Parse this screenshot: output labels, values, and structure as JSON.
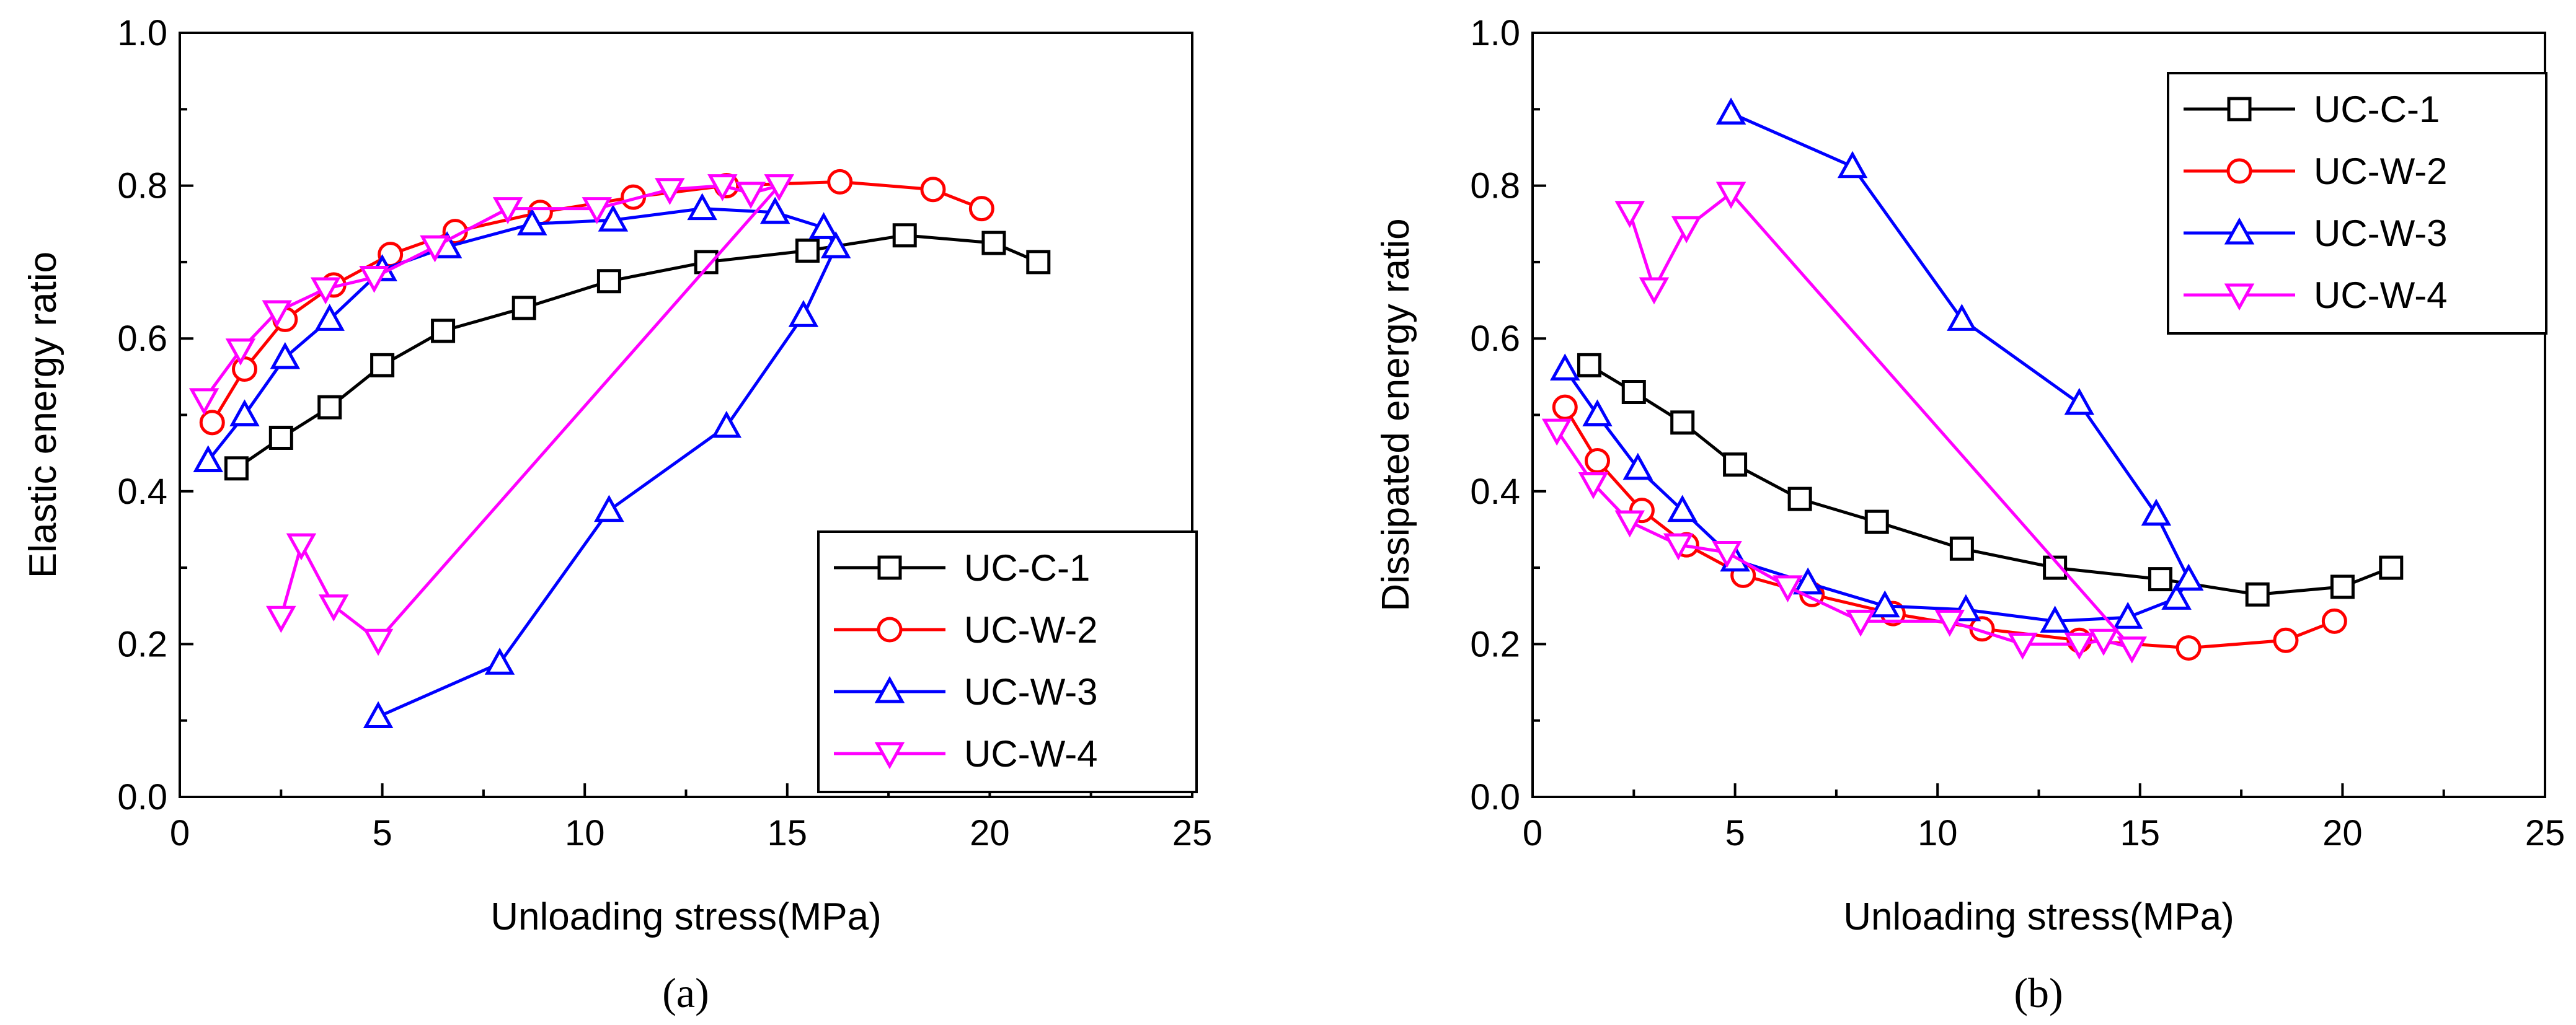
{
  "captions": {
    "a": "(a)",
    "b": "(b)"
  },
  "series_styles": [
    {
      "name": "UC-C-1",
      "color": "#000000",
      "marker": "square"
    },
    {
      "name": "UC-W-2",
      "color": "#ff0000",
      "marker": "circle"
    },
    {
      "name": "UC-W-3",
      "color": "#0000ff",
      "marker": "triangle-up"
    },
    {
      "name": "UC-W-4",
      "color": "#ff00ff",
      "marker": "triangle-down"
    }
  ],
  "chart_data": [
    {
      "id": "a",
      "type": "line",
      "xlabel": "Unloading stress(MPa)",
      "ylabel": "Elastic energy ratio",
      "xlim": [
        0,
        25
      ],
      "ylim": [
        0.0,
        1.0
      ],
      "xticks": [
        "0",
        "5",
        "10",
        "15",
        "20",
        "25"
      ],
      "yticks": [
        "0.0",
        "0.2",
        "0.4",
        "0.6",
        "0.8",
        "1.0"
      ],
      "legend_position": "bottom-right",
      "series": [
        {
          "name": "UC-C-1",
          "x": [
            1.4,
            2.5,
            3.7,
            5.0,
            6.5,
            8.5,
            10.6,
            13.0,
            15.5,
            17.9,
            20.1,
            21.2
          ],
          "y": [
            0.43,
            0.47,
            0.51,
            0.565,
            0.61,
            0.64,
            0.675,
            0.7,
            0.715,
            0.735,
            0.725,
            0.7
          ]
        },
        {
          "name": "UC-W-2",
          "x": [
            0.8,
            1.6,
            2.6,
            3.8,
            5.2,
            6.8,
            8.9,
            11.2,
            13.5,
            16.3,
            18.6,
            19.8
          ],
          "y": [
            0.49,
            0.56,
            0.625,
            0.67,
            0.71,
            0.74,
            0.765,
            0.785,
            0.8,
            0.805,
            0.795,
            0.77
          ]
        },
        {
          "name": "UC-W-3",
          "x": [
            0.7,
            1.6,
            2.6,
            3.7,
            5.0,
            6.6,
            8.7,
            10.7,
            12.9,
            14.7,
            15.9,
            16.2,
            15.4,
            13.5,
            10.6,
            7.9,
            4.9
          ],
          "y": [
            0.44,
            0.5,
            0.575,
            0.625,
            0.69,
            0.72,
            0.75,
            0.755,
            0.77,
            0.765,
            0.745,
            0.72,
            0.63,
            0.485,
            0.375,
            0.175,
            0.105
          ]
        },
        {
          "name": "UC-W-4",
          "x": [
            0.6,
            1.5,
            2.4,
            3.6,
            4.8,
            6.3,
            8.1,
            10.3,
            12.1,
            13.4,
            14.1,
            14.8,
            4.9,
            3.8,
            3.0,
            2.5
          ],
          "y": [
            0.52,
            0.585,
            0.635,
            0.665,
            0.68,
            0.72,
            0.77,
            0.77,
            0.795,
            0.8,
            0.79,
            0.8,
            0.205,
            0.25,
            0.33,
            0.235
          ]
        }
      ]
    },
    {
      "id": "b",
      "type": "line",
      "xlabel": "Unloading stress(MPa)",
      "ylabel": "Dissipated energy ratio",
      "xlim": [
        0,
        25
      ],
      "ylim": [
        0.0,
        1.0
      ],
      "xticks": [
        "0",
        "5",
        "10",
        "15",
        "20",
        "25"
      ],
      "yticks": [
        "0.0",
        "0.2",
        "0.4",
        "0.6",
        "0.8",
        "1.0"
      ],
      "legend_position": "top-right",
      "series": [
        {
          "name": "UC-C-1",
          "x": [
            1.4,
            2.5,
            3.7,
            5.0,
            6.6,
            8.5,
            10.6,
            12.9,
            15.5,
            17.9,
            20.0,
            21.2
          ],
          "y": [
            0.565,
            0.53,
            0.49,
            0.435,
            0.39,
            0.36,
            0.325,
            0.3,
            0.285,
            0.265,
            0.275,
            0.3
          ]
        },
        {
          "name": "UC-W-2",
          "x": [
            0.8,
            1.6,
            2.7,
            3.8,
            5.2,
            6.9,
            8.9,
            11.1,
            13.5,
            16.2,
            18.6,
            19.8
          ],
          "y": [
            0.51,
            0.44,
            0.375,
            0.33,
            0.29,
            0.265,
            0.24,
            0.22,
            0.205,
            0.195,
            0.205,
            0.23
          ]
        },
        {
          "name": "UC-W-3",
          "x": [
            0.8,
            1.6,
            2.6,
            3.7,
            5.0,
            6.8,
            8.7,
            10.7,
            12.9,
            14.7,
            15.9,
            16.2,
            15.4,
            13.5,
            10.6,
            7.9,
            4.9
          ],
          "y": [
            0.56,
            0.5,
            0.43,
            0.375,
            0.31,
            0.28,
            0.25,
            0.245,
            0.23,
            0.235,
            0.26,
            0.285,
            0.37,
            0.515,
            0.625,
            0.825,
            0.895
          ]
        },
        {
          "name": "UC-W-4",
          "x": [
            0.6,
            1.5,
            2.4,
            3.6,
            4.8,
            6.3,
            8.1,
            10.3,
            12.1,
            13.5,
            14.1,
            14.8,
            4.9,
            3.8,
            3.0,
            2.4
          ],
          "y": [
            0.48,
            0.41,
            0.36,
            0.33,
            0.32,
            0.275,
            0.23,
            0.23,
            0.2,
            0.2,
            0.205,
            0.195,
            0.79,
            0.745,
            0.665,
            0.765
          ]
        }
      ]
    }
  ]
}
